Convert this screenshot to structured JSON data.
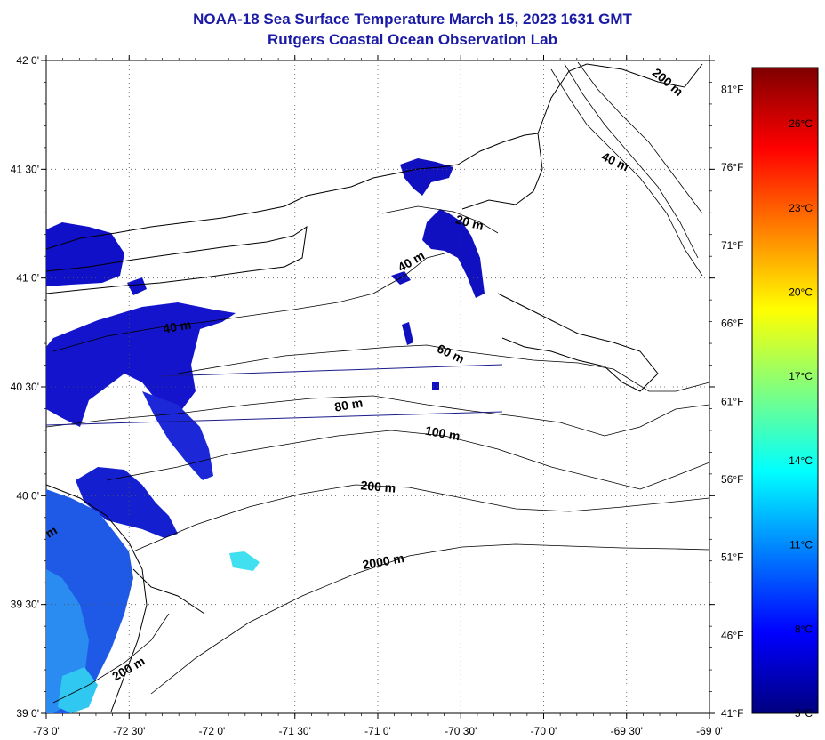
{
  "title": "NOAA-18 Sea Surface Temperature March 15, 2023 1631 GMT",
  "subtitle": "Rutgers Coastal Ocean Observation Lab",
  "map": {
    "lon_range": [
      -73.0,
      -69.0
    ],
    "lat_range": [
      39.0,
      42.0
    ],
    "lat_labels": [
      "42 0'",
      "41 30'",
      "41 0'",
      "40 30'",
      "40 0'",
      "39 30'",
      "39 0'"
    ],
    "lon_labels": [
      "-73 0'",
      "-72 30'",
      "-72 0'",
      "-71 30'",
      "-71 0'",
      "-70 30'",
      "-70 0'",
      "-69 30'",
      "-69 0'"
    ],
    "grid": "dotted",
    "contour_labels": [
      "200 m",
      "40 m",
      "20 m",
      "40 m",
      "40 m",
      "60 m",
      "80 m",
      "100 m",
      "200 m",
      "2000 m",
      "200 m",
      "m"
    ]
  },
  "colorbar": {
    "celsius_labels": [
      "26°C",
      "23°C",
      "20°C",
      "17°C",
      "14°C",
      "11°C",
      "8°C",
      "5°C"
    ],
    "fahrenheit_labels": [
      "81°F",
      "76°F",
      "71°F",
      "66°F",
      "61°F",
      "56°F",
      "51°F",
      "46°F",
      "41°F"
    ],
    "range_c": [
      5,
      28
    ],
    "colors": [
      "#00007f",
      "#0000ff",
      "#007fff",
      "#00ffff",
      "#7fff7f",
      "#ffff00",
      "#ff7f00",
      "#ff0000",
      "#7f0000"
    ]
  }
}
